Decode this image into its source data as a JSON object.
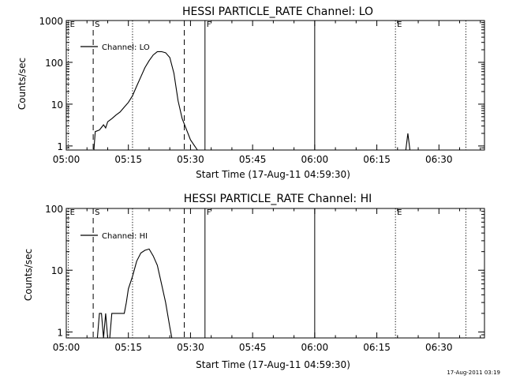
{
  "chart_data": [
    {
      "type": "line",
      "title": "HESSI PARTICLE_RATE Channel: LO",
      "xlabel": "Start Time (17-Aug-11 04:59:30)",
      "ylabel": "Counts/sec",
      "yscale": "log",
      "ylim": [
        0.8,
        1000
      ],
      "xlim": [
        "05:00",
        "06:41"
      ],
      "xticks": [
        "05:00",
        "05:15",
        "05:30",
        "05:45",
        "06:00",
        "06:15",
        "06:30"
      ],
      "yticks": [
        "1",
        "10",
        "100",
        "1000"
      ],
      "legend": "top-left",
      "series": [
        {
          "name": "Channel: LO",
          "x": [
            "05:06:40",
            "05:07:00",
            "05:08:00",
            "05:09:00",
            "05:09:30",
            "05:10:00",
            "05:11:00",
            "05:12:00",
            "05:13:00",
            "05:14:00",
            "05:15:00",
            "05:16:00",
            "05:17:00",
            "05:18:00",
            "05:19:00",
            "05:20:00",
            "05:21:00",
            "05:22:00",
            "05:23:00",
            "05:24:00",
            "05:25:00",
            "05:26:00",
            "05:27:00",
            "05:28:00",
            "05:29:00",
            "05:30:00",
            "05:31:00",
            "05:31:40",
            "06:22:00",
            "06:22:30",
            "06:23:00"
          ],
          "values": [
            0.8,
            2.2,
            2.4,
            3.2,
            2.7,
            3.8,
            4.5,
            5.5,
            6.5,
            8.5,
            11,
            16,
            27,
            45,
            75,
            110,
            150,
            180,
            180,
            170,
            130,
            55,
            12,
            4.5,
            2.5,
            1.4,
            1,
            0.8,
            0.8,
            2,
            0.8
          ]
        }
      ],
      "markers": [
        {
          "label": "E",
          "time": "05:00:30",
          "style": "dotted"
        },
        {
          "label": "S",
          "time": "05:06:30",
          "style": "dashed"
        },
        {
          "label": "",
          "time": "05:16:00",
          "style": "dotted"
        },
        {
          "label": "",
          "time": "05:28:30",
          "style": "dashed"
        },
        {
          "label": "F",
          "time": "05:33:30",
          "style": "solid"
        },
        {
          "label": "",
          "time": "06:00:00",
          "style": "solid"
        },
        {
          "label": "E",
          "time": "06:19:30",
          "style": "dotted"
        },
        {
          "label": "",
          "time": "06:36:30",
          "style": "dotted"
        }
      ]
    },
    {
      "type": "line",
      "title": "HESSI PARTICLE_RATE Channel: HI",
      "xlabel": "Start Time (17-Aug-11 04:59:30)",
      "ylabel": "Counts/sec",
      "yscale": "log",
      "ylim": [
        0.8,
        100
      ],
      "xlim": [
        "05:00",
        "06:41"
      ],
      "xticks": [
        "05:00",
        "05:15",
        "05:30",
        "05:45",
        "06:00",
        "06:15",
        "06:30"
      ],
      "yticks": [
        "1",
        "10",
        "100"
      ],
      "legend": "top-left",
      "series": [
        {
          "name": "Channel: HI",
          "x": [
            "05:07:30",
            "05:08:00",
            "05:08:30",
            "05:09:00",
            "05:09:30",
            "05:10:00",
            "05:10:30",
            "05:11:00",
            "05:12:00",
            "05:13:00",
            "05:14:00",
            "05:14:30",
            "05:15:00",
            "05:16:00",
            "05:17:00",
            "05:18:00",
            "05:19:00",
            "05:20:00",
            "05:21:00",
            "05:22:00",
            "05:23:00",
            "05:24:00",
            "05:25:00",
            "05:25:30",
            "05:26:00"
          ],
          "values": [
            0.8,
            2,
            2,
            0.8,
            2,
            0.8,
            0.8,
            2,
            2,
            2,
            2,
            3,
            5,
            8,
            14,
            19,
            21,
            22,
            17,
            12,
            6,
            3,
            1.2,
            0.8,
            0.8
          ]
        }
      ],
      "markers": [
        {
          "label": "E",
          "time": "05:00:30",
          "style": "dotted"
        },
        {
          "label": "S",
          "time": "05:06:30",
          "style": "dashed"
        },
        {
          "label": "",
          "time": "05:16:00",
          "style": "dotted"
        },
        {
          "label": "",
          "time": "05:28:30",
          "style": "dashed"
        },
        {
          "label": "F",
          "time": "05:33:30",
          "style": "solid"
        },
        {
          "label": "",
          "time": "06:00:00",
          "style": "solid"
        },
        {
          "label": "E",
          "time": "06:19:30",
          "style": "dotted"
        },
        {
          "label": "",
          "time": "06:36:30",
          "style": "dotted"
        }
      ]
    }
  ],
  "footer": {
    "timestamp": "17-Aug-2011 03:19"
  }
}
